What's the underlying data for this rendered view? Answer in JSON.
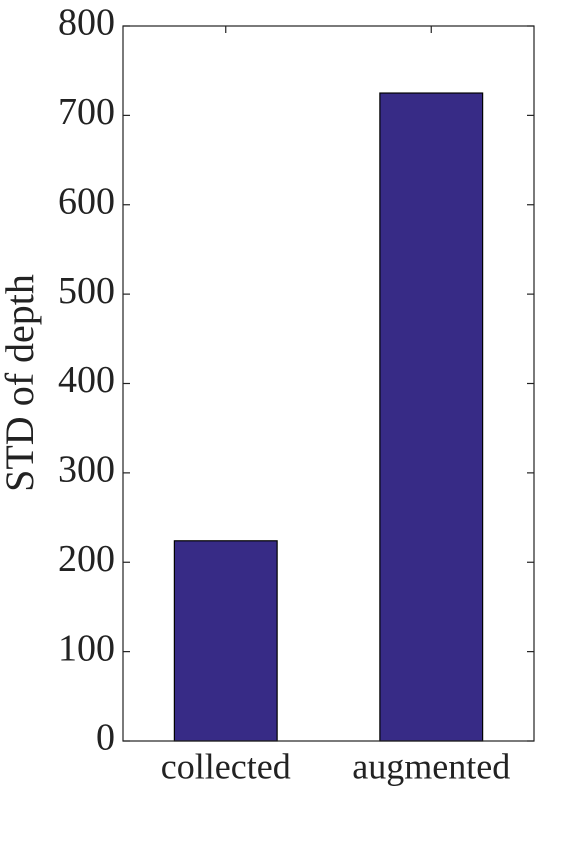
{
  "chart_data": {
    "type": "bar",
    "y_label": "STD of depth",
    "categories": [
      "collected",
      "augmented"
    ],
    "values": [
      224,
      725
    ],
    "color": "#372b86",
    "ylim": [
      0,
      800
    ],
    "yticks": [
      0,
      100,
      200,
      300,
      400,
      500,
      600,
      700,
      800
    ]
  }
}
